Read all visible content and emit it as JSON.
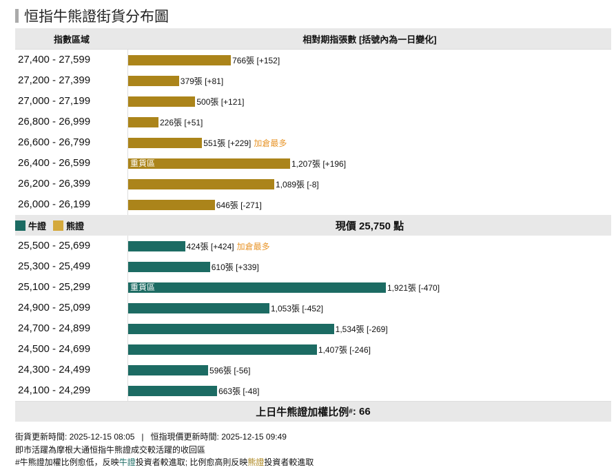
{
  "title": "恒指牛熊證街貨分布圖",
  "header": {
    "range_col": "指數區域",
    "count_col": "相對期指張數 [括號內為一日變化]"
  },
  "legend": {
    "bull": "牛證",
    "bear": "熊證"
  },
  "colors": {
    "bull": "#1c6b63",
    "bear": "#ab841a",
    "bear_legend": "#d4a93c",
    "hot": "#e8962b"
  },
  "current_price": "現價 25,750 點",
  "weight_ratio": {
    "label": "上日牛熊證加權比例",
    "mark": "#",
    "value": ": 66"
  },
  "notes": {
    "line1": "街貨更新時間: 2025-12-15 08:05   |   恒指現價更新時間: 2025-12-15 09:49",
    "line2": "即市活躍為摩根大通恒指牛熊證成交較活躍的收回區",
    "line3a": "#牛熊證加權比例愈低，反映",
    "line3b": "牛證",
    "line3c": "投資者較進取; 比例愈高則反映",
    "line3d": "熊證",
    "line3e": "投資者較進取"
  },
  "chart_data": {
    "type": "bar",
    "orientation": "horizontal",
    "xmax": 1921,
    "bear": [
      {
        "range": "27,400 - 27,599",
        "value": 766,
        "label": "766張 [+152]",
        "tag": ""
      },
      {
        "range": "27,200 - 27,399",
        "value": 379,
        "label": "379張 [+81]",
        "tag": ""
      },
      {
        "range": "27,000 - 27,199",
        "value": 500,
        "label": "500張 [+121]",
        "tag": ""
      },
      {
        "range": "26,800 - 26,999",
        "value": 226,
        "label": "226張 [+51]",
        "tag": ""
      },
      {
        "range": "26,600 - 26,799",
        "value": 551,
        "label": "551張 [+229]",
        "tag": "加倉最多"
      },
      {
        "range": "26,400 - 26,599",
        "value": 1207,
        "label": "1,207張 [+196]",
        "tag": "",
        "zone": "重貨區"
      },
      {
        "range": "26,200 - 26,399",
        "value": 1089,
        "label": "1,089張 [-8]",
        "tag": ""
      },
      {
        "range": "26,000 - 26,199",
        "value": 646,
        "label": "646張 [-271]",
        "tag": ""
      }
    ],
    "bull": [
      {
        "range": "25,500 - 25,699",
        "value": 424,
        "label": "424張 [+424]",
        "tag": "加倉最多"
      },
      {
        "range": "25,300 - 25,499",
        "value": 610,
        "label": "610張 [+339]",
        "tag": ""
      },
      {
        "range": "25,100 - 25,299",
        "value": 1921,
        "label": "1,921張 [-470]",
        "tag": "",
        "zone": "重貨區"
      },
      {
        "range": "24,900 - 25,099",
        "value": 1053,
        "label": "1,053張 [-452]",
        "tag": ""
      },
      {
        "range": "24,700 - 24,899",
        "value": 1534,
        "label": "1,534張 [-269]",
        "tag": ""
      },
      {
        "range": "24,500 - 24,699",
        "value": 1407,
        "label": "1,407張 [-246]",
        "tag": ""
      },
      {
        "range": "24,300 - 24,499",
        "value": 596,
        "label": "596張 [-56]",
        "tag": ""
      },
      {
        "range": "24,100 - 24,299",
        "value": 663,
        "label": "663張 [-48]",
        "tag": ""
      }
    ]
  }
}
